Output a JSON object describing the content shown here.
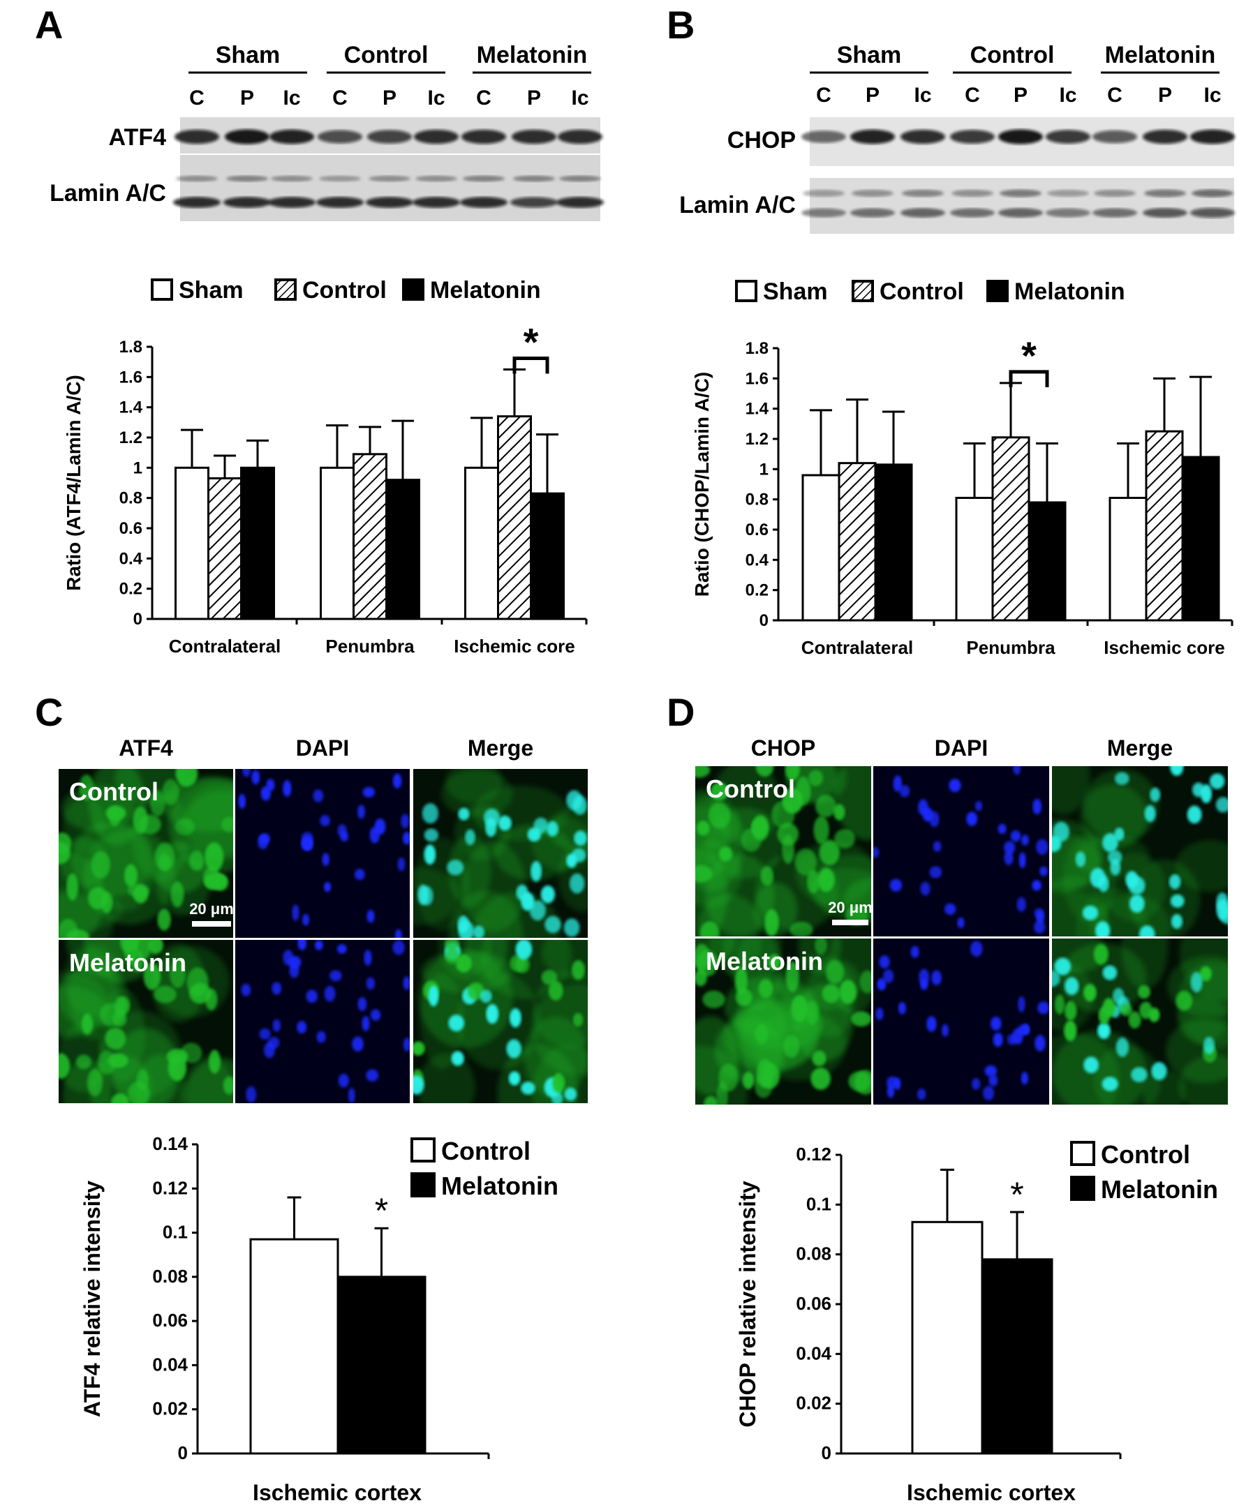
{
  "figure": {
    "panels": {
      "A": {
        "letter": "A",
        "blot": {
          "groups": [
            "Sham",
            "Control",
            "Melatonin"
          ],
          "lanes": [
            "C",
            "P",
            "Ic",
            "C",
            "P",
            "Ic",
            "C",
            "P",
            "Ic"
          ],
          "rows": [
            "ATF4",
            "Lamin A/C"
          ]
        }
      },
      "B": {
        "letter": "B",
        "blot": {
          "groups": [
            "Sham",
            "Control",
            "Melatonin"
          ],
          "lanes": [
            "C",
            "P",
            "Ic",
            "C",
            "P",
            "Ic",
            "C",
            "P",
            "Ic"
          ],
          "rows": [
            "CHOP",
            "Lamin A/C"
          ]
        }
      },
      "C": {
        "letter": "C",
        "micro": {
          "columns": [
            "ATF4",
            "DAPI",
            "Merge"
          ],
          "rows": [
            "Control",
            "Melatonin"
          ],
          "scale_bar": "20 μm"
        }
      },
      "D": {
        "letter": "D",
        "micro": {
          "columns": [
            "CHOP",
            "DAPI",
            "Merge"
          ],
          "rows": [
            "Control",
            "Melatonin"
          ],
          "scale_bar": "20 μm"
        }
      }
    },
    "colors": {
      "green_cells": "#22c02a",
      "blue_nuclei": "#1a2cff",
      "cyan_merge": "#29f0e6",
      "bar_black": "#000000",
      "bar_white": "#ffffff"
    }
  },
  "chart_data": [
    {
      "id": "A",
      "type": "bar",
      "ylabel": "Ratio (ATF4/Lamin A/C)",
      "ylim": [
        0,
        1.8
      ],
      "yticks": [
        "0",
        "0.2",
        "0.4",
        "0.6",
        "0.8",
        "1",
        "1.2",
        "1.4",
        "1.6",
        "1.8"
      ],
      "categories": [
        "Contralateral",
        "Penumbra",
        "Ischemic core"
      ],
      "legend": "top",
      "series": [
        {
          "name": "Sham",
          "fill": "white",
          "values": [
            1.0,
            1.0,
            1.0
          ],
          "errors": [
            0.25,
            0.28,
            0.33
          ]
        },
        {
          "name": "Control",
          "fill": "hatch",
          "values": [
            0.93,
            1.09,
            1.34
          ],
          "errors": [
            0.15,
            0.18,
            0.31
          ]
        },
        {
          "name": "Melatonin",
          "fill": "black",
          "values": [
            1.0,
            0.92,
            0.83
          ],
          "errors": [
            0.18,
            0.39,
            0.39
          ]
        }
      ],
      "significance": {
        "category": "Ischemic core",
        "between": [
          "Control",
          "Melatonin"
        ],
        "mark": "*"
      }
    },
    {
      "id": "B",
      "type": "bar",
      "ylabel": "Ratio (CHOP/Lamin A/C)",
      "ylim": [
        0,
        1.8
      ],
      "yticks": [
        "0",
        "0.2",
        "0.4",
        "0.6",
        "0.8",
        "1",
        "1.2",
        "1.4",
        "1.6",
        "1.8"
      ],
      "categories": [
        "Contralateral",
        "Penumbra",
        "Ischemic core"
      ],
      "legend": "top",
      "series": [
        {
          "name": "Sham",
          "fill": "white",
          "values": [
            0.96,
            0.81,
            0.81
          ],
          "errors": [
            0.43,
            0.36,
            0.36
          ]
        },
        {
          "name": "Control",
          "fill": "hatch",
          "values": [
            1.04,
            1.21,
            1.25
          ],
          "errors": [
            0.42,
            0.36,
            0.35
          ]
        },
        {
          "name": "Melatonin",
          "fill": "black",
          "values": [
            1.03,
            0.78,
            1.08
          ],
          "errors": [
            0.35,
            0.39,
            0.53
          ]
        }
      ],
      "significance": {
        "category": "Penumbra",
        "between": [
          "Control",
          "Melatonin"
        ],
        "mark": "*"
      }
    },
    {
      "id": "C",
      "type": "bar",
      "ylabel": "ATF4 relative intensity",
      "xlabel": "Ischemic cortex",
      "ylim": [
        0,
        0.14
      ],
      "yticks": [
        "0",
        "0.02",
        "0.04",
        "0.06",
        "0.08",
        "0.1",
        "0.12",
        "0.14"
      ],
      "categories": [
        "Ischemic cortex"
      ],
      "legend": "top-right",
      "series": [
        {
          "name": "Control",
          "fill": "white",
          "values": [
            0.097
          ],
          "errors": [
            0.019
          ]
        },
        {
          "name": "Melatonin",
          "fill": "black",
          "values": [
            0.08
          ],
          "errors": [
            0.022
          ]
        }
      ],
      "significance": {
        "series": "Melatonin",
        "mark": "*"
      }
    },
    {
      "id": "D",
      "type": "bar",
      "ylabel": "CHOP relative intensity",
      "xlabel": "Ischemic cortex",
      "ylim": [
        0,
        0.12
      ],
      "yticks": [
        "0",
        "0.02",
        "0.04",
        "0.06",
        "0.08",
        "0.1",
        "0.12"
      ],
      "categories": [
        "Ischemic cortex"
      ],
      "legend": "top-right",
      "series": [
        {
          "name": "Control",
          "fill": "white",
          "values": [
            0.093
          ],
          "errors": [
            0.021
          ]
        },
        {
          "name": "Melatonin",
          "fill": "black",
          "values": [
            0.078
          ],
          "errors": [
            0.019
          ]
        }
      ],
      "significance": {
        "series": "Melatonin",
        "mark": "*"
      }
    }
  ]
}
